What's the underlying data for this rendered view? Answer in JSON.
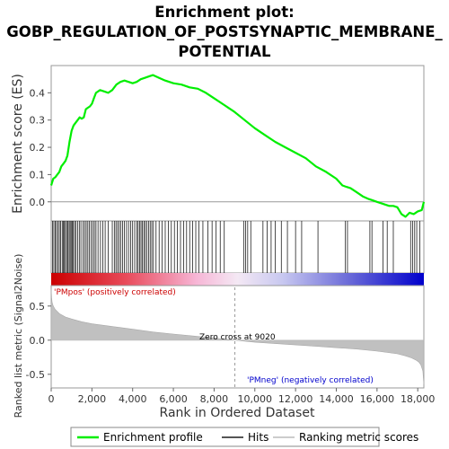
{
  "chart_data": {
    "type": "line",
    "title_lines": [
      "Enrichment plot:",
      "GOBP_REGULATION_OF_POSTSYNAPTIC_MEMBRANE_",
      "POTENTIAL"
    ],
    "xlabel": "Rank in Ordered Dataset",
    "es_panel": {
      "ylabel": "Enrichment score (ES)",
      "ylim": [
        -0.07,
        0.5
      ],
      "yticks": [
        0.0,
        0.1,
        0.2,
        0.3,
        0.4
      ],
      "ytick_labels": [
        "0.0",
        "0.1",
        "0.2",
        "0.3",
        "0.4"
      ],
      "series": [
        {
          "name": "Enrichment profile",
          "color": "#00ee00",
          "x": [
            0,
            100,
            200,
            300,
            400,
            500,
            600,
            700,
            800,
            900,
            1000,
            1100,
            1200,
            1300,
            1400,
            1500,
            1600,
            1700,
            1800,
            1900,
            2000,
            2100,
            2200,
            2400,
            2600,
            2800,
            3000,
            3200,
            3400,
            3600,
            3800,
            4000,
            4200,
            4400,
            4600,
            4800,
            5000,
            5300,
            5600,
            6000,
            6400,
            6800,
            7200,
            7600,
            8000,
            8500,
            9000,
            9500,
            10000,
            10500,
            11000,
            11500,
            12000,
            12500,
            13000,
            13500,
            14000,
            14300,
            14500,
            14700,
            15000,
            15300,
            15600,
            15800,
            16000,
            16200,
            16400,
            16600,
            16800,
            17000,
            17200,
            17400,
            17600,
            17800,
            18000,
            18200,
            18300
          ],
          "y": [
            0.06,
            0.085,
            0.09,
            0.1,
            0.11,
            0.13,
            0.14,
            0.15,
            0.17,
            0.22,
            0.26,
            0.28,
            0.29,
            0.3,
            0.31,
            0.305,
            0.31,
            0.34,
            0.345,
            0.35,
            0.36,
            0.38,
            0.4,
            0.41,
            0.405,
            0.4,
            0.41,
            0.43,
            0.44,
            0.445,
            0.44,
            0.435,
            0.44,
            0.45,
            0.455,
            0.46,
            0.465,
            0.455,
            0.445,
            0.435,
            0.43,
            0.42,
            0.415,
            0.4,
            0.38,
            0.355,
            0.33,
            0.3,
            0.27,
            0.245,
            0.22,
            0.2,
            0.18,
            0.16,
            0.13,
            0.11,
            0.085,
            0.06,
            0.055,
            0.05,
            0.035,
            0.02,
            0.01,
            0.005,
            0.0,
            -0.005,
            -0.01,
            -0.015,
            -0.015,
            -0.02,
            -0.045,
            -0.055,
            -0.04,
            -0.045,
            -0.035,
            -0.03,
            0.0
          ]
        }
      ]
    },
    "hits": [
      60,
      130,
      200,
      260,
      330,
      400,
      470,
      540,
      600,
      650,
      700,
      760,
      820,
      880,
      930,
      980,
      1030,
      1090,
      1150,
      1220,
      1300,
      1380,
      1460,
      1560,
      1640,
      1720,
      1800,
      1880,
      1960,
      2040,
      2120,
      2200,
      2300,
      2420,
      2540,
      2650,
      2800,
      3000,
      3100,
      3180,
      3260,
      3340,
      3420,
      3500,
      3600,
      3700,
      3800,
      3900,
      4000,
      4100,
      4200,
      4270,
      4340,
      4410,
      4480,
      4550,
      4620,
      4700,
      4780,
      4860,
      4940,
      5020,
      5150,
      5300,
      5450,
      5600,
      5750,
      5900,
      6050,
      6200,
      6350,
      6500,
      6650,
      6800,
      6950,
      7100,
      7250,
      7450,
      7700,
      7900,
      8100,
      8300,
      8500,
      9450,
      9550,
      9650,
      9800,
      10400,
      10600,
      10800,
      11000,
      11300,
      11600,
      12000,
      12300,
      13100,
      14450,
      14550,
      15650,
      15750,
      16300,
      16500,
      16800,
      17650,
      17750,
      17850,
      17950,
      18100
    ],
    "rank_colorbar": {
      "pos_label": "'PMpos' (positively correlated)",
      "neg_label": "'PMneg' (negatively correlated)",
      "pos_color": "#cc0000",
      "neg_color": "#0000cc"
    },
    "metric_panel": {
      "ylabel": "Ranked list metric (Signal2Noise)",
      "ylim": [
        -0.7,
        0.8
      ],
      "yticks": [
        0.5,
        0.0,
        -0.5
      ],
      "ytick_labels": [
        "0.5",
        "0.0",
        "-0.5"
      ],
      "zero_cross_label": "Zero cross at 9020",
      "zero_cross": 9020,
      "profile_x": [
        0,
        20,
        50,
        100,
        200,
        400,
        700,
        1000,
        1500,
        2000,
        3000,
        4000,
        5000,
        6000,
        7000,
        8000,
        9020,
        10000,
        11000,
        12000,
        13000,
        14000,
        15000,
        16000,
        16500,
        17000,
        17400,
        17700,
        17900,
        18050,
        18150,
        18250,
        18300
      ],
      "profile_y": [
        0.75,
        0.62,
        0.55,
        0.5,
        0.45,
        0.39,
        0.34,
        0.31,
        0.27,
        0.24,
        0.2,
        0.16,
        0.12,
        0.09,
        0.06,
        0.03,
        0.0,
        -0.03,
        -0.05,
        -0.07,
        -0.09,
        -0.11,
        -0.13,
        -0.16,
        -0.18,
        -0.2,
        -0.23,
        -0.26,
        -0.29,
        -0.32,
        -0.36,
        -0.45,
        -0.65
      ]
    },
    "xlim": [
      0,
      18300
    ],
    "xticks": [
      0,
      2000,
      4000,
      6000,
      8000,
      10000,
      12000,
      14000,
      16000,
      18000
    ],
    "xtick_labels": [
      "0",
      "2,000",
      "4,000",
      "6,000",
      "8,000",
      "10,000",
      "12,000",
      "14,000",
      "16,000",
      "18,000"
    ],
    "legend": [
      {
        "label": "Enrichment profile",
        "color": "#00ee00",
        "kind": "line"
      },
      {
        "label": "Hits",
        "color": "#555555",
        "kind": "line"
      },
      {
        "label": "Ranking metric scores",
        "color": "#cccccc",
        "kind": "line"
      }
    ]
  }
}
